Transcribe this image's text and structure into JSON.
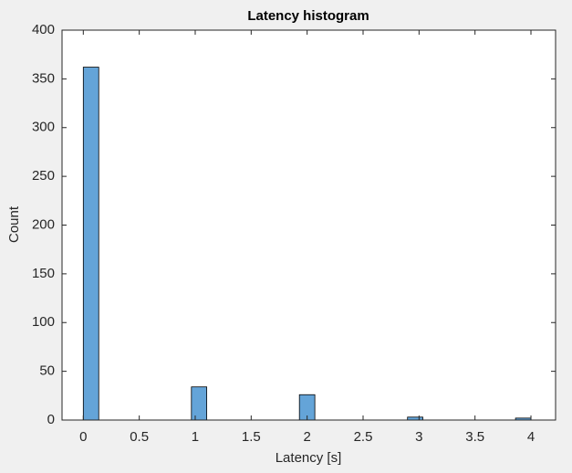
{
  "chart_data": {
    "type": "histogram",
    "title": "Latency histogram",
    "x_label": "Latency [s]",
    "y_label": "Count",
    "bins": [
      0,
      0.138,
      0.276,
      0.414,
      0.552,
      0.69,
      0.828,
      0.966,
      1.103,
      1.241,
      1.379,
      1.517,
      1.655,
      1.793,
      1.931,
      2.069,
      2.207,
      2.345,
      2.483,
      2.621,
      2.759,
      2.897,
      3.034,
      3.172,
      3.31,
      3.448,
      3.586,
      3.724,
      3.862,
      4.0
    ],
    "values": [
      362,
      0,
      0,
      0,
      0,
      0,
      0,
      34,
      0,
      0,
      0,
      0,
      0,
      0,
      26,
      0,
      0,
      0,
      0,
      0,
      0,
      3,
      0,
      0,
      0,
      0,
      0,
      0,
      2
    ],
    "color": "#64a4d8",
    "xlim": [
      -0.19,
      4.22
    ],
    "ylim": [
      0,
      400
    ],
    "xticks": [
      0,
      0.5,
      1,
      1.5,
      2,
      2.5,
      3,
      3.5,
      4
    ],
    "yticks": [
      0,
      50,
      100,
      150,
      200,
      250,
      300,
      350,
      400
    ]
  }
}
